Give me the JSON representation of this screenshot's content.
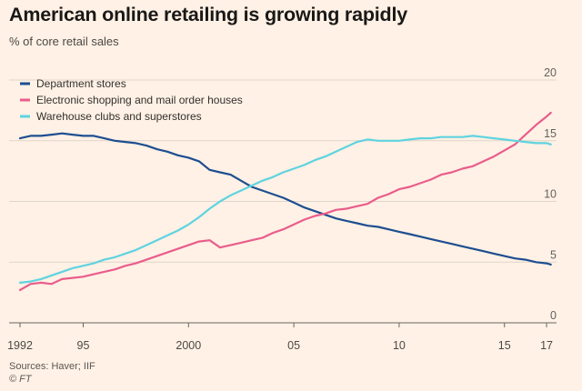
{
  "chart_data": {
    "type": "line",
    "title": "American online retailing is growing rapidly",
    "subtitle": "% of core retail sales",
    "xlabel": "",
    "ylabel": "% of core retail sales",
    "xlim": [
      1992,
      2017.3
    ],
    "ylim": [
      0,
      20
    ],
    "yticks": [
      0,
      5,
      10,
      15,
      20
    ],
    "ytick_labels": [
      "0",
      "5",
      "10",
      "15",
      "20"
    ],
    "xticks": [
      1992,
      1995,
      2000,
      2005,
      2010,
      2015,
      2017
    ],
    "xtick_labels": [
      "1992",
      "95",
      "2000",
      "05",
      "10",
      "15",
      "17"
    ],
    "grid": true,
    "legend_position": "top-left",
    "series": [
      {
        "name": "Department stores",
        "color": "#1d4e91",
        "x": [
          1992,
          1992.5,
          1993,
          1993.5,
          1994,
          1994.5,
          1995,
          1995.5,
          1996,
          1996.5,
          1997,
          1997.5,
          1998,
          1998.5,
          1999,
          1999.5,
          2000,
          2000.5,
          2001,
          2001.5,
          2002,
          2002.5,
          2003,
          2003.5,
          2004,
          2004.5,
          2005,
          2005.5,
          2006,
          2006.5,
          2007,
          2007.5,
          2008,
          2008.5,
          2009,
          2009.5,
          2010,
          2010.5,
          2011,
          2011.5,
          2012,
          2012.5,
          2013,
          2013.5,
          2014,
          2014.5,
          2015,
          2015.5,
          2016,
          2016.5,
          2017,
          2017.2
        ],
        "y": [
          15.2,
          15.4,
          15.4,
          15.5,
          15.6,
          15.5,
          15.4,
          15.4,
          15.2,
          15.0,
          14.9,
          14.8,
          14.6,
          14.3,
          14.1,
          13.8,
          13.6,
          13.3,
          12.6,
          12.4,
          12.2,
          11.7,
          11.2,
          10.9,
          10.6,
          10.3,
          9.9,
          9.5,
          9.2,
          8.9,
          8.6,
          8.4,
          8.2,
          8.0,
          7.9,
          7.7,
          7.5,
          7.3,
          7.1,
          6.9,
          6.7,
          6.5,
          6.3,
          6.1,
          5.9,
          5.7,
          5.5,
          5.3,
          5.2,
          5.0,
          4.9,
          4.8
        ]
      },
      {
        "name": "Electronic shopping and mail order houses",
        "color": "#e95d8c",
        "x": [
          1992,
          1992.5,
          1993,
          1993.5,
          1994,
          1994.5,
          1995,
          1995.5,
          1996,
          1996.5,
          1997,
          1997.5,
          1998,
          1998.5,
          1999,
          1999.5,
          2000,
          2000.5,
          2001,
          2001.5,
          2002,
          2002.5,
          2003,
          2003.5,
          2004,
          2004.5,
          2005,
          2005.5,
          2006,
          2006.5,
          2007,
          2007.5,
          2008,
          2008.5,
          2009,
          2009.5,
          2010,
          2010.5,
          2011,
          2011.5,
          2012,
          2012.5,
          2013,
          2013.5,
          2014,
          2014.5,
          2015,
          2015.5,
          2016,
          2016.5,
          2017,
          2017.2
        ],
        "y": [
          2.7,
          3.2,
          3.3,
          3.2,
          3.6,
          3.7,
          3.8,
          4.0,
          4.2,
          4.4,
          4.7,
          4.9,
          5.2,
          5.5,
          5.8,
          6.1,
          6.4,
          6.7,
          6.8,
          6.2,
          6.4,
          6.6,
          6.8,
          7.0,
          7.4,
          7.7,
          8.1,
          8.5,
          8.8,
          9.0,
          9.3,
          9.4,
          9.6,
          9.8,
          10.3,
          10.6,
          11.0,
          11.2,
          11.5,
          11.8,
          12.2,
          12.4,
          12.7,
          12.9,
          13.3,
          13.7,
          14.2,
          14.7,
          15.5,
          16.3,
          17.0,
          17.3
        ]
      },
      {
        "name": "Warehouse clubs and superstores",
        "color": "#5fd3e0",
        "x": [
          1992,
          1992.5,
          1993,
          1993.5,
          1994,
          1994.5,
          1995,
          1995.5,
          1996,
          1996.5,
          1997,
          1997.5,
          1998,
          1998.5,
          1999,
          1999.5,
          2000,
          2000.5,
          2001,
          2001.5,
          2002,
          2002.5,
          2003,
          2003.5,
          2004,
          2004.5,
          2005,
          2005.5,
          2006,
          2006.5,
          2007,
          2007.5,
          2008,
          2008.5,
          2009,
          2009.5,
          2010,
          2010.5,
          2011,
          2011.5,
          2012,
          2012.5,
          2013,
          2013.5,
          2014,
          2014.5,
          2015,
          2015.5,
          2016,
          2016.5,
          2017,
          2017.2
        ],
        "y": [
          3.3,
          3.4,
          3.6,
          3.9,
          4.2,
          4.5,
          4.7,
          4.9,
          5.2,
          5.4,
          5.7,
          6.0,
          6.4,
          6.8,
          7.2,
          7.6,
          8.1,
          8.7,
          9.4,
          10.0,
          10.5,
          10.9,
          11.3,
          11.7,
          12.0,
          12.4,
          12.7,
          13.0,
          13.4,
          13.7,
          14.1,
          14.5,
          14.9,
          15.1,
          15.0,
          15.0,
          15.0,
          15.1,
          15.2,
          15.2,
          15.3,
          15.3,
          15.3,
          15.4,
          15.3,
          15.2,
          15.1,
          15.0,
          14.9,
          14.8,
          14.8,
          14.7
        ]
      }
    ]
  },
  "footer": {
    "sources": "Sources: Haver; IIF",
    "copyright": "© FT"
  }
}
